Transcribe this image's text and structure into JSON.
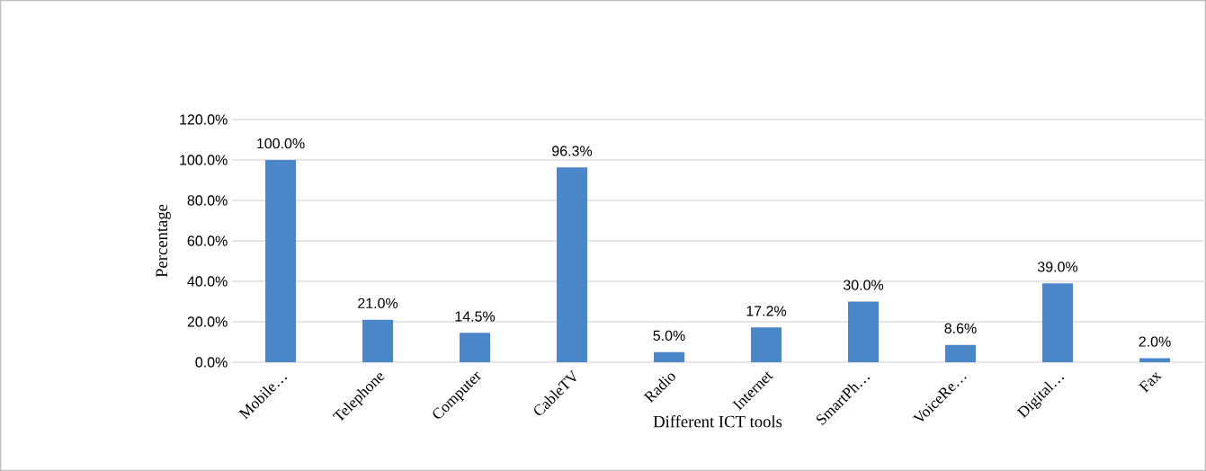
{
  "chart_data": {
    "type": "bar",
    "xlabel": "Different ICT tools",
    "ylabel": "Percentage",
    "categories": [
      "Mobile…",
      "Telephone",
      "Computer",
      "CableTV",
      "Radio",
      "Internet",
      "SmartPh…",
      "VoiceRe…",
      "Digital…",
      "Fax"
    ],
    "values": [
      100,
      21,
      14.5,
      96.3,
      5,
      17.2,
      30,
      8.6,
      39,
      2
    ],
    "value_labels": [
      "100.0%",
      "21.0%",
      "14.5%",
      "96.3%",
      "5.0%",
      "17.2%",
      "30.0%",
      "8.6%",
      "39.0%",
      "2.0%"
    ],
    "color": "#4a86c8",
    "ylim": [
      0,
      120
    ],
    "yticks": [
      {
        "value": 0,
        "label": "0.0%"
      },
      {
        "value": 20,
        "label": "20.0%"
      },
      {
        "value": 40,
        "label": "40.0%"
      },
      {
        "value": 60,
        "label": "60.0%"
      },
      {
        "value": 80,
        "label": "80.0%"
      },
      {
        "value": 100,
        "label": "100.0%"
      },
      {
        "value": 120,
        "label": "120.0%"
      }
    ],
    "grid": "y"
  }
}
